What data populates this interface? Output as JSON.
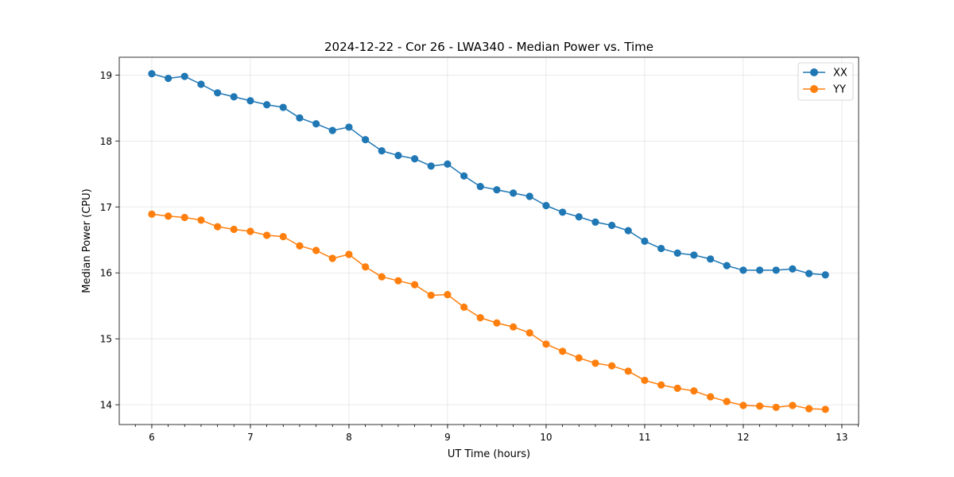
{
  "chart_data": {
    "type": "line",
    "title": "2024-12-22 - Cor 26 - LWA340 - Median Power vs. Time",
    "xlabel": "UT Time (hours)",
    "ylabel": "Median Power (CPU)",
    "xlim": [
      5.67,
      13.17
    ],
    "ylim": [
      13.7,
      19.27
    ],
    "xticks": [
      6,
      7,
      8,
      9,
      10,
      11,
      12,
      13
    ],
    "yticks": [
      14,
      15,
      16,
      17,
      18,
      19
    ],
    "grid": true,
    "legend_position": "top-right",
    "x": [
      6.0,
      6.167,
      6.333,
      6.5,
      6.667,
      6.833,
      7.0,
      7.167,
      7.333,
      7.5,
      7.667,
      7.833,
      8.0,
      8.167,
      8.333,
      8.5,
      8.667,
      8.833,
      9.0,
      9.167,
      9.333,
      9.5,
      9.667,
      9.833,
      10.0,
      10.167,
      10.333,
      10.5,
      10.667,
      10.833,
      11.0,
      11.167,
      11.333,
      11.5,
      11.667,
      11.833,
      12.0,
      12.167,
      12.333,
      12.5,
      12.667,
      12.833
    ],
    "series": [
      {
        "name": "XX",
        "color": "#1f77b4",
        "values": [
          19.02,
          18.95,
          18.98,
          18.86,
          18.73,
          18.67,
          18.61,
          18.55,
          18.51,
          18.35,
          18.26,
          18.16,
          18.21,
          18.02,
          17.85,
          17.78,
          17.73,
          17.62,
          17.65,
          17.47,
          17.31,
          17.26,
          17.21,
          17.16,
          17.02,
          16.92,
          16.85,
          16.77,
          16.72,
          16.64,
          16.48,
          16.37,
          16.3,
          16.27,
          16.21,
          16.11,
          16.04,
          16.04,
          16.04,
          16.06,
          15.99,
          15.97
        ]
      },
      {
        "name": "YY",
        "color": "#ff7f0e",
        "values": [
          16.89,
          16.86,
          16.84,
          16.8,
          16.7,
          16.66,
          16.63,
          16.57,
          16.55,
          16.41,
          16.34,
          16.22,
          16.28,
          16.09,
          15.94,
          15.88,
          15.82,
          15.66,
          15.67,
          15.48,
          15.32,
          15.24,
          15.18,
          15.09,
          14.92,
          14.81,
          14.71,
          14.63,
          14.59,
          14.51,
          14.37,
          14.3,
          14.25,
          14.21,
          14.12,
          14.05,
          13.99,
          13.98,
          13.96,
          13.99,
          13.94,
          13.93
        ]
      }
    ]
  }
}
